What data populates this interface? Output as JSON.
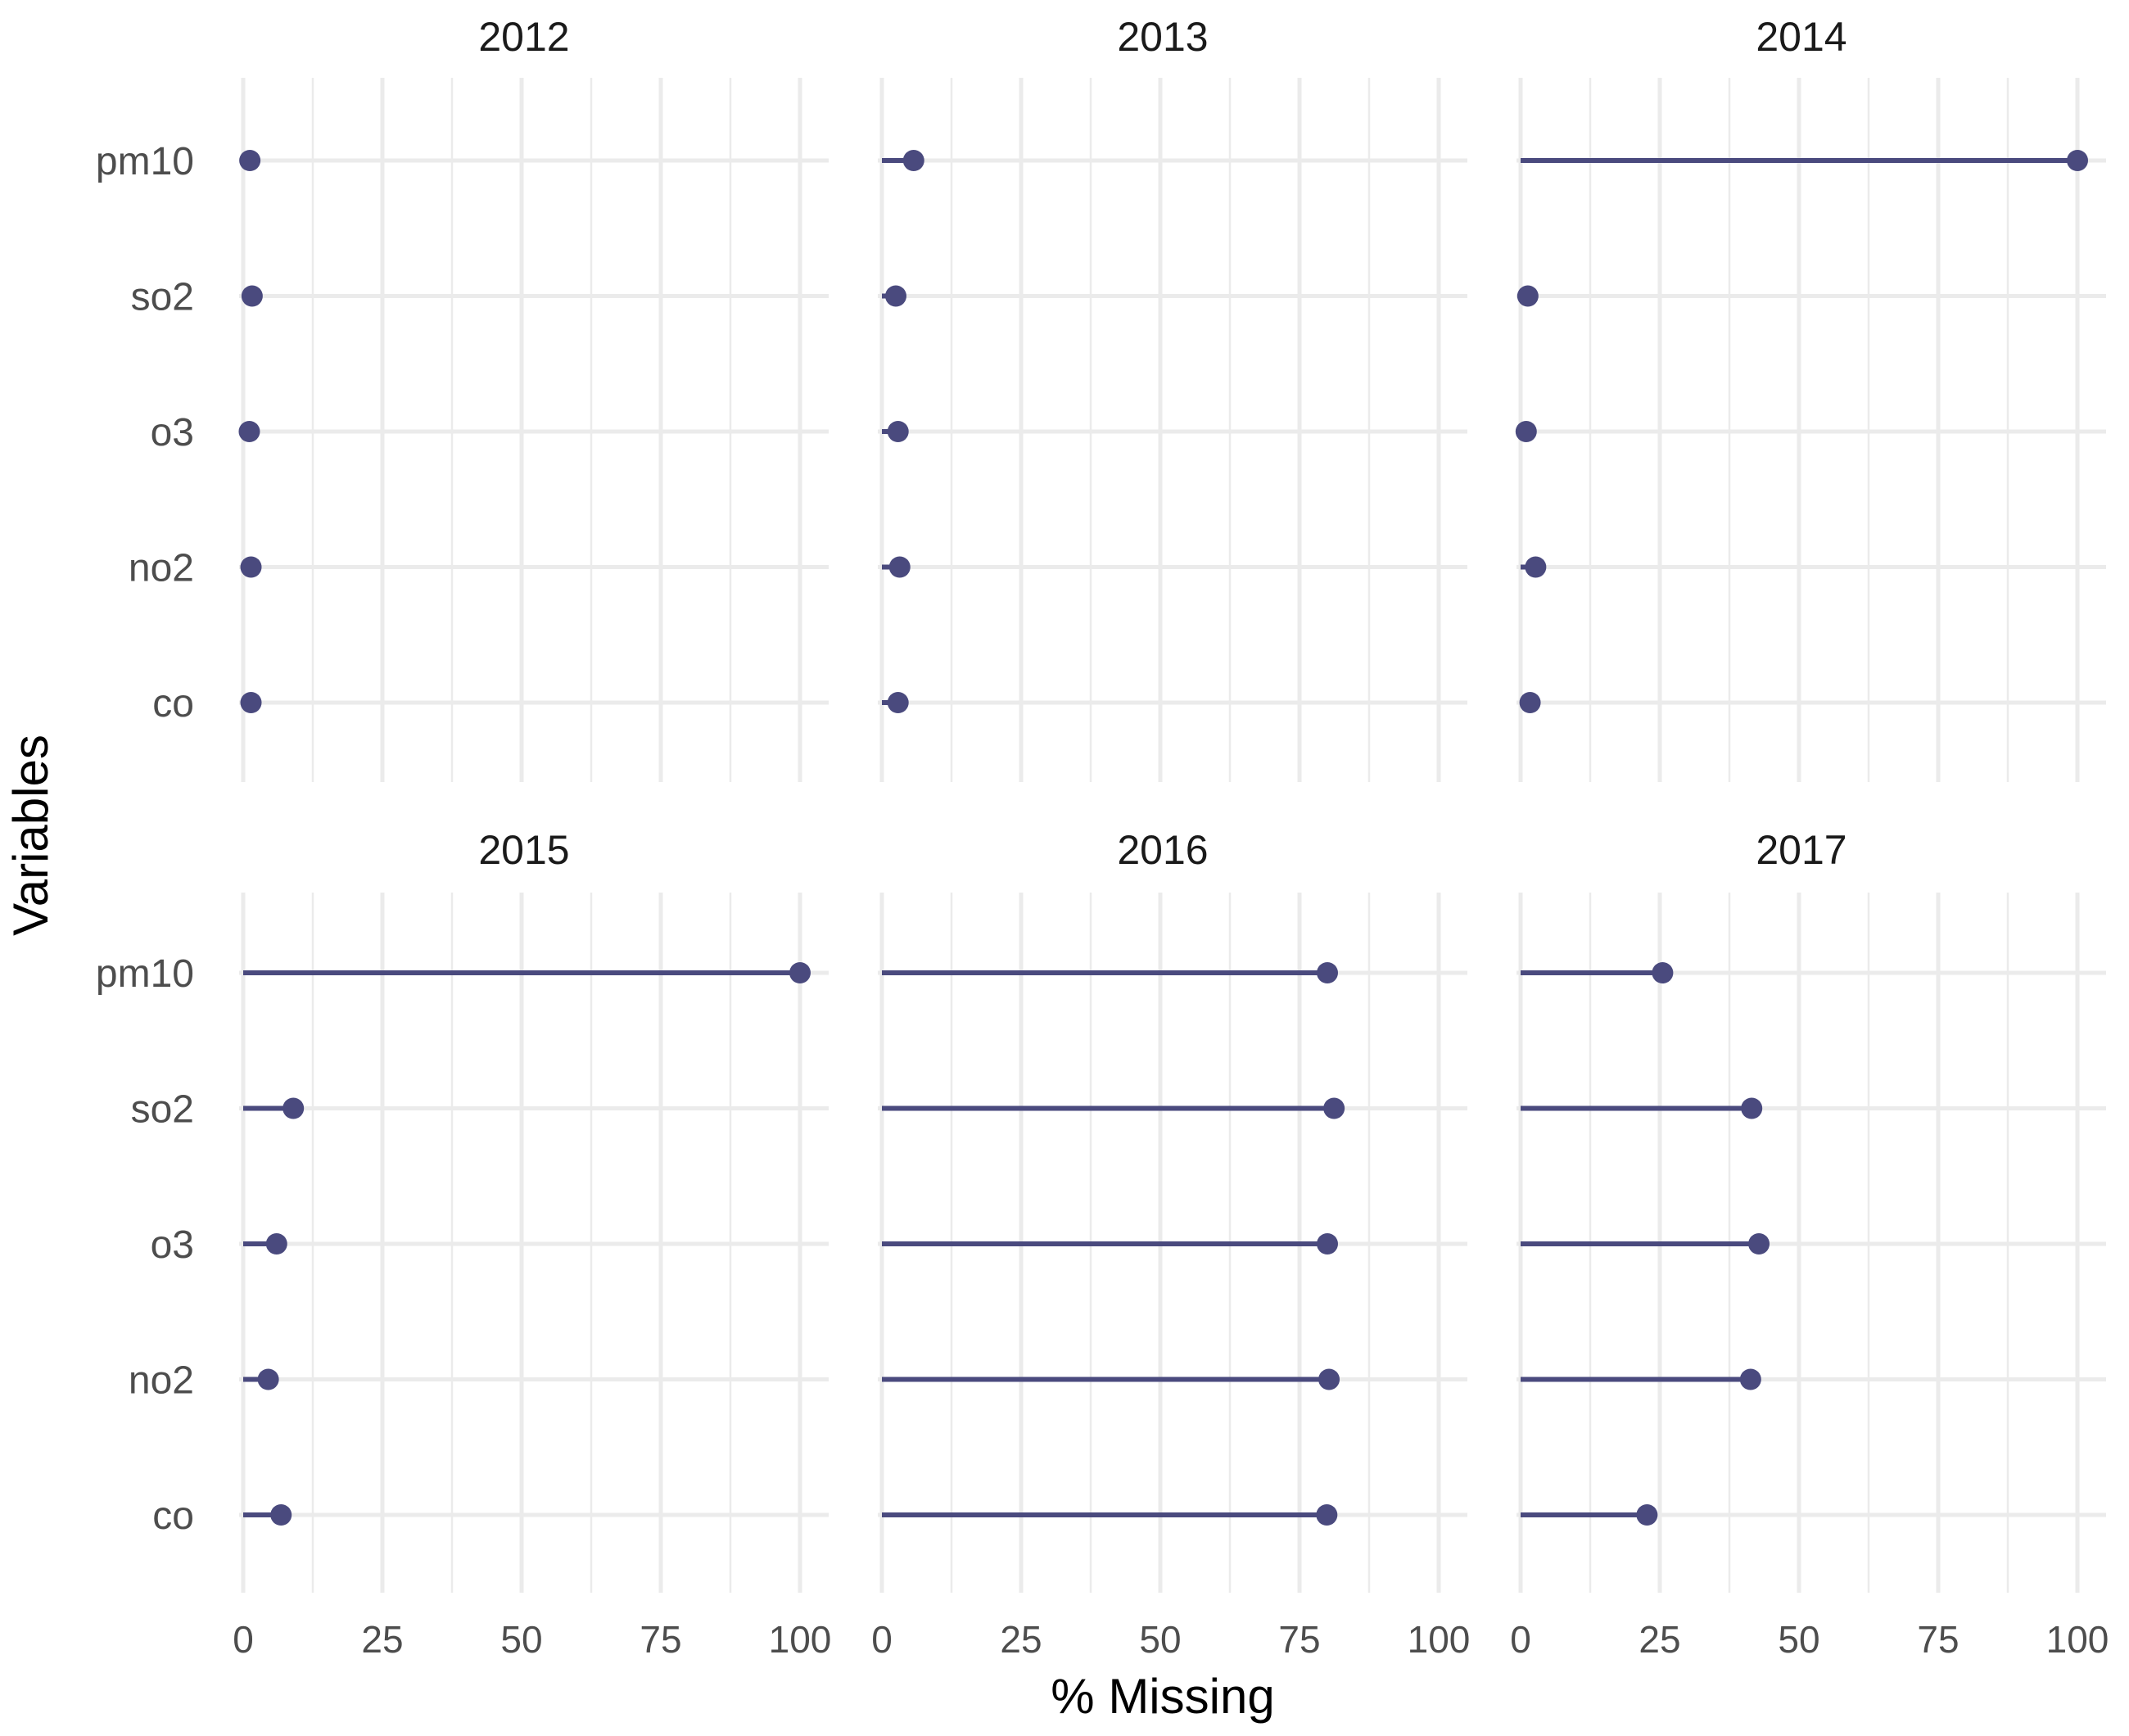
{
  "chart_data": {
    "type": "lollipop",
    "xlabel": "% Missing",
    "ylabel": "Variables",
    "xlim": [
      0,
      100
    ],
    "x_ticks": [
      0,
      25,
      50,
      75,
      100
    ],
    "x_ticks_labels": [
      "0",
      "25",
      "50",
      "75",
      "100"
    ],
    "categories": [
      "pm10",
      "so2",
      "o3",
      "no2",
      "co"
    ],
    "grid": true,
    "colors": {
      "mark": "#4a4a7e",
      "grid": "#ebebeb"
    },
    "panels": [
      {
        "title": "2012",
        "values": {
          "pm10": 1.2,
          "so2": 1.6,
          "o3": 1.1,
          "no2": 1.4,
          "co": 1.4
        }
      },
      {
        "title": "2013",
        "values": {
          "pm10": 5.7,
          "so2": 2.5,
          "o3": 2.9,
          "no2": 3.2,
          "co": 2.9
        }
      },
      {
        "title": "2014",
        "values": {
          "pm10": 100,
          "so2": 1.3,
          "o3": 1.0,
          "no2": 2.7,
          "co": 1.7
        }
      },
      {
        "title": "2015",
        "values": {
          "pm10": 100,
          "so2": 9.0,
          "o3": 6.0,
          "no2": 4.5,
          "co": 6.8
        }
      },
      {
        "title": "2016",
        "values": {
          "pm10": 80.0,
          "so2": 81.2,
          "o3": 80.0,
          "no2": 80.3,
          "co": 79.9
        }
      },
      {
        "title": "2017",
        "values": {
          "pm10": 25.5,
          "so2": 41.5,
          "o3": 42.8,
          "no2": 41.3,
          "co": 22.7
        }
      }
    ]
  }
}
